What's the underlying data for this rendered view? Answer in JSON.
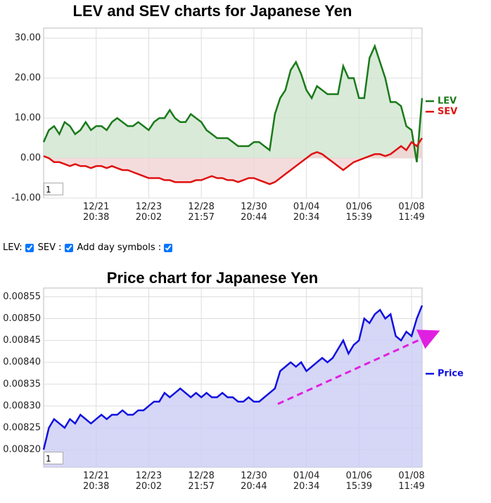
{
  "chart_data": [
    {
      "type": "area-line",
      "title": "LEV and SEV charts for Japanese Yen",
      "categories": [
        null,
        null,
        null,
        null,
        null,
        null,
        null,
        null,
        null,
        null,
        "12/21\n20:38",
        null,
        null,
        null,
        null,
        null,
        null,
        null,
        null,
        null,
        "12/23\n20:02",
        null,
        null,
        null,
        null,
        null,
        null,
        null,
        null,
        null,
        "12/28\n21:57",
        null,
        null,
        null,
        null,
        null,
        null,
        null,
        null,
        null,
        "12/30\n20:44",
        null,
        null,
        null,
        null,
        null,
        null,
        null,
        null,
        null,
        "01/04\n20:34",
        null,
        null,
        null,
        null,
        null,
        null,
        null,
        null,
        null,
        "01/06\n15:39",
        null,
        null,
        null,
        null,
        null,
        null,
        null,
        null,
        null,
        "01/08\n11:49",
        null,
        null
      ],
      "series": [
        {
          "name": "LEV",
          "color": "#1a7a1a",
          "fill": "#cfe5cf",
          "values": [
            4,
            7,
            8,
            6,
            9,
            8,
            6,
            7,
            9,
            7,
            8,
            8,
            7,
            9,
            10,
            9,
            8,
            8,
            9,
            8,
            7,
            9,
            10,
            10,
            12,
            10,
            9,
            9,
            11,
            10,
            9,
            7,
            6,
            5,
            5,
            5,
            4,
            3,
            3,
            3,
            4,
            4,
            3,
            2,
            11,
            15,
            17,
            22,
            24,
            21,
            17,
            15,
            18,
            17,
            16,
            16,
            16,
            23,
            20,
            20,
            15,
            15,
            25,
            28,
            24,
            20,
            14,
            14,
            13,
            8,
            7,
            -1,
            15
          ]
        },
        {
          "name": "SEV",
          "color": "#e01010",
          "fill": "#f3d3d3",
          "values": [
            0.5,
            0,
            -1,
            -1,
            -1.5,
            -2,
            -1.5,
            -2,
            -2,
            -2.5,
            -2,
            -2,
            -2.5,
            -2,
            -2.5,
            -3,
            -3,
            -3.5,
            -4,
            -4.5,
            -5,
            -5,
            -5,
            -5.5,
            -5.5,
            -6,
            -6,
            -6,
            -6,
            -5.5,
            -5.5,
            -5,
            -4.5,
            -5,
            -5,
            -5.5,
            -5.5,
            -6,
            -5.5,
            -5,
            -5,
            -5.5,
            -6,
            -6.5,
            -6,
            -5,
            -4,
            -3,
            -2,
            -1,
            0,
            1,
            1.5,
            1,
            0,
            -1,
            -2,
            -3,
            -2,
            -1,
            -0.5,
            0,
            0.5,
            1,
            1,
            0.5,
            1,
            2,
            3,
            2,
            4,
            3,
            5
          ]
        }
      ],
      "ylim": [
        -10,
        32.5
      ],
      "yticks": [
        {
          "value": 30,
          "label": "30.00"
        },
        {
          "value": 20,
          "label": "20.00"
        },
        {
          "value": 10,
          "label": "10.00"
        },
        {
          "value": 0,
          "label": "0.00"
        },
        {
          "value": -10,
          "label": "-10.00"
        }
      ],
      "grid": true,
      "legend": "right",
      "input": "1"
    },
    {
      "type": "area-line",
      "title": "Price chart for Japanese Yen",
      "categories": [
        null,
        null,
        null,
        null,
        null,
        null,
        null,
        null,
        null,
        null,
        "12/21\n20:38",
        null,
        null,
        null,
        null,
        null,
        null,
        null,
        null,
        null,
        "12/23\n20:02",
        null,
        null,
        null,
        null,
        null,
        null,
        null,
        null,
        null,
        "12/28\n21:57",
        null,
        null,
        null,
        null,
        null,
        null,
        null,
        null,
        null,
        "12/30\n20:44",
        null,
        null,
        null,
        null,
        null,
        null,
        null,
        null,
        null,
        "01/04\n20:34",
        null,
        null,
        null,
        null,
        null,
        null,
        null,
        null,
        null,
        "01/06\n15:39",
        null,
        null,
        null,
        null,
        null,
        null,
        null,
        null,
        null,
        "01/08\n11:49",
        null,
        null
      ],
      "series": [
        {
          "name": "Price",
          "color": "#1010e0",
          "fill": "#ccccf5",
          "values": [
            0.0082,
            0.00825,
            0.00827,
            0.00826,
            0.00825,
            0.00827,
            0.00826,
            0.00828,
            0.00827,
            0.00826,
            0.00827,
            0.00828,
            0.00827,
            0.00828,
            0.00828,
            0.00829,
            0.00828,
            0.00828,
            0.00829,
            0.00829,
            0.0083,
            0.00831,
            0.00831,
            0.00833,
            0.00832,
            0.00833,
            0.00834,
            0.00833,
            0.00832,
            0.00833,
            0.00832,
            0.00833,
            0.00832,
            0.00832,
            0.00833,
            0.00832,
            0.00832,
            0.00831,
            0.00831,
            0.00832,
            0.00831,
            0.00831,
            0.00832,
            0.00833,
            0.00834,
            0.00838,
            0.00839,
            0.0084,
            0.00839,
            0.0084,
            0.00838,
            0.00839,
            0.0084,
            0.00841,
            0.0084,
            0.00841,
            0.00843,
            0.00845,
            0.00842,
            0.00844,
            0.00845,
            0.0085,
            0.00849,
            0.00851,
            0.00852,
            0.0085,
            0.00851,
            0.00846,
            0.00845,
            0.00847,
            0.00846,
            0.0085,
            0.00853
          ]
        }
      ],
      "ylim": [
        0.00816,
        0.00857
      ],
      "yticks": [
        0.00855,
        {
          "value": 0.0085,
          "label": "0.00850"
        },
        0.00845,
        {
          "value": 0.0084,
          "label": "0.00840"
        },
        0.00835,
        {
          "value": 0.0083,
          "label": "0.00830"
        },
        0.00825,
        {
          "value": 0.0082,
          "label": "0.00820"
        }
      ],
      "grid": true,
      "legend": "right",
      "input": "1"
    }
  ],
  "controls": {
    "lev": "LEV:",
    "sev": "SEV :",
    "days": "Add day symbols :"
  }
}
